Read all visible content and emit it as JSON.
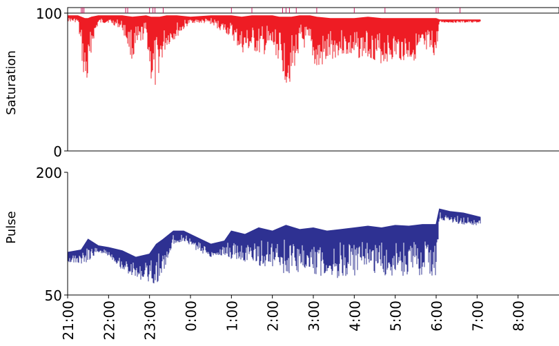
{
  "chart_data": [
    {
      "type": "line",
      "title": "",
      "ylabel": "Saturation",
      "xlabel": "",
      "ylim": [
        0,
        100
      ],
      "yticks": [
        "0",
        "100"
      ],
      "color": "#ee1c24",
      "x_range": [
        "21:00",
        "9:00"
      ],
      "event_markers_x": [
        "21:20",
        "21:22",
        "21:24",
        "22:25",
        "22:28",
        "23:00",
        "23:05",
        "23:08",
        "23:20",
        "1:00",
        "1:30",
        "2:15",
        "2:20",
        "2:25",
        "2:35",
        "3:05",
        "4:00",
        "4:45",
        "6:00",
        "6:03",
        "6:35"
      ],
      "series": [
        {
          "x": [
            "21:00",
            "21:15",
            "21:25",
            "21:30",
            "21:35",
            "21:45",
            "22:00",
            "22:20",
            "22:35",
            "22:55",
            "23:02",
            "23:08",
            "23:15",
            "23:25",
            "23:40",
            "0:00",
            "0:30",
            "1:00",
            "1:15",
            "1:30",
            "1:45",
            "2:00",
            "2:10",
            "2:20",
            "2:28",
            "2:40",
            "2:55",
            "3:05",
            "3:25",
            "3:40",
            "4:00",
            "4:20",
            "4:40",
            "5:00",
            "5:20",
            "5:40",
            "6:00",
            "6:05",
            "6:30",
            "7:00",
            "7:05"
          ],
          "max": [
            98,
            98,
            96,
            96,
            97,
            98,
            98,
            98,
            97,
            98,
            97,
            97,
            97,
            98,
            98,
            97,
            98,
            98,
            97,
            98,
            98,
            98,
            97,
            97,
            97,
            98,
            98,
            97,
            96,
            96,
            96,
            97,
            96,
            96,
            96,
            96,
            96,
            95,
            95,
            95,
            95
          ],
          "min": [
            94,
            93,
            45,
            45,
            75,
            92,
            93,
            88,
            65,
            85,
            50,
            42,
            60,
            75,
            82,
            93,
            92,
            82,
            70,
            72,
            68,
            73,
            65,
            48,
            50,
            75,
            72,
            55,
            65,
            70,
            66,
            68,
            63,
            66,
            64,
            68,
            68,
            93,
            93,
            93,
            93
          ]
        }
      ]
    },
    {
      "type": "line",
      "title": "",
      "ylabel": "Pulse",
      "xlabel": "",
      "ylim": [
        50,
        200
      ],
      "yticks": [
        "50",
        "200"
      ],
      "color": "#2e3192",
      "xticks": [
        "21:00",
        "22:00",
        "23:00",
        "0:00",
        "1:00",
        "2:00",
        "3:00",
        "4:00",
        "5:00",
        "6:00",
        "7:00",
        "8:00"
      ],
      "x_range": [
        "21:00",
        "9:00"
      ],
      "series": [
        {
          "x": [
            "21:00",
            "21:20",
            "21:30",
            "21:45",
            "22:00",
            "22:20",
            "22:40",
            "23:00",
            "23:10",
            "23:20",
            "23:35",
            "23:50",
            "0:05",
            "0:30",
            "0:50",
            "1:00",
            "1:20",
            "1:40",
            "2:00",
            "2:20",
            "2:40",
            "3:00",
            "3:20",
            "3:40",
            "4:00",
            "4:20",
            "4:40",
            "5:00",
            "5:20",
            "5:40",
            "6:00",
            "6:05",
            "6:20",
            "6:40",
            "7:05"
          ],
          "max": [
            102,
            105,
            118,
            110,
            108,
            104,
            96,
            100,
            112,
            118,
            128,
            128,
            122,
            112,
            116,
            128,
            124,
            132,
            128,
            135,
            130,
            132,
            128,
            130,
            132,
            134,
            132,
            135,
            134,
            136,
            136,
            155,
            152,
            150,
            145
          ],
          "min": [
            90,
            88,
            90,
            102,
            98,
            80,
            70,
            66,
            62,
            75,
            112,
            116,
            106,
            96,
            98,
            92,
            90,
            86,
            80,
            75,
            78,
            75,
            72,
            70,
            73,
            78,
            72,
            74,
            72,
            74,
            72,
            142,
            138,
            136,
            134
          ]
        }
      ]
    }
  ]
}
